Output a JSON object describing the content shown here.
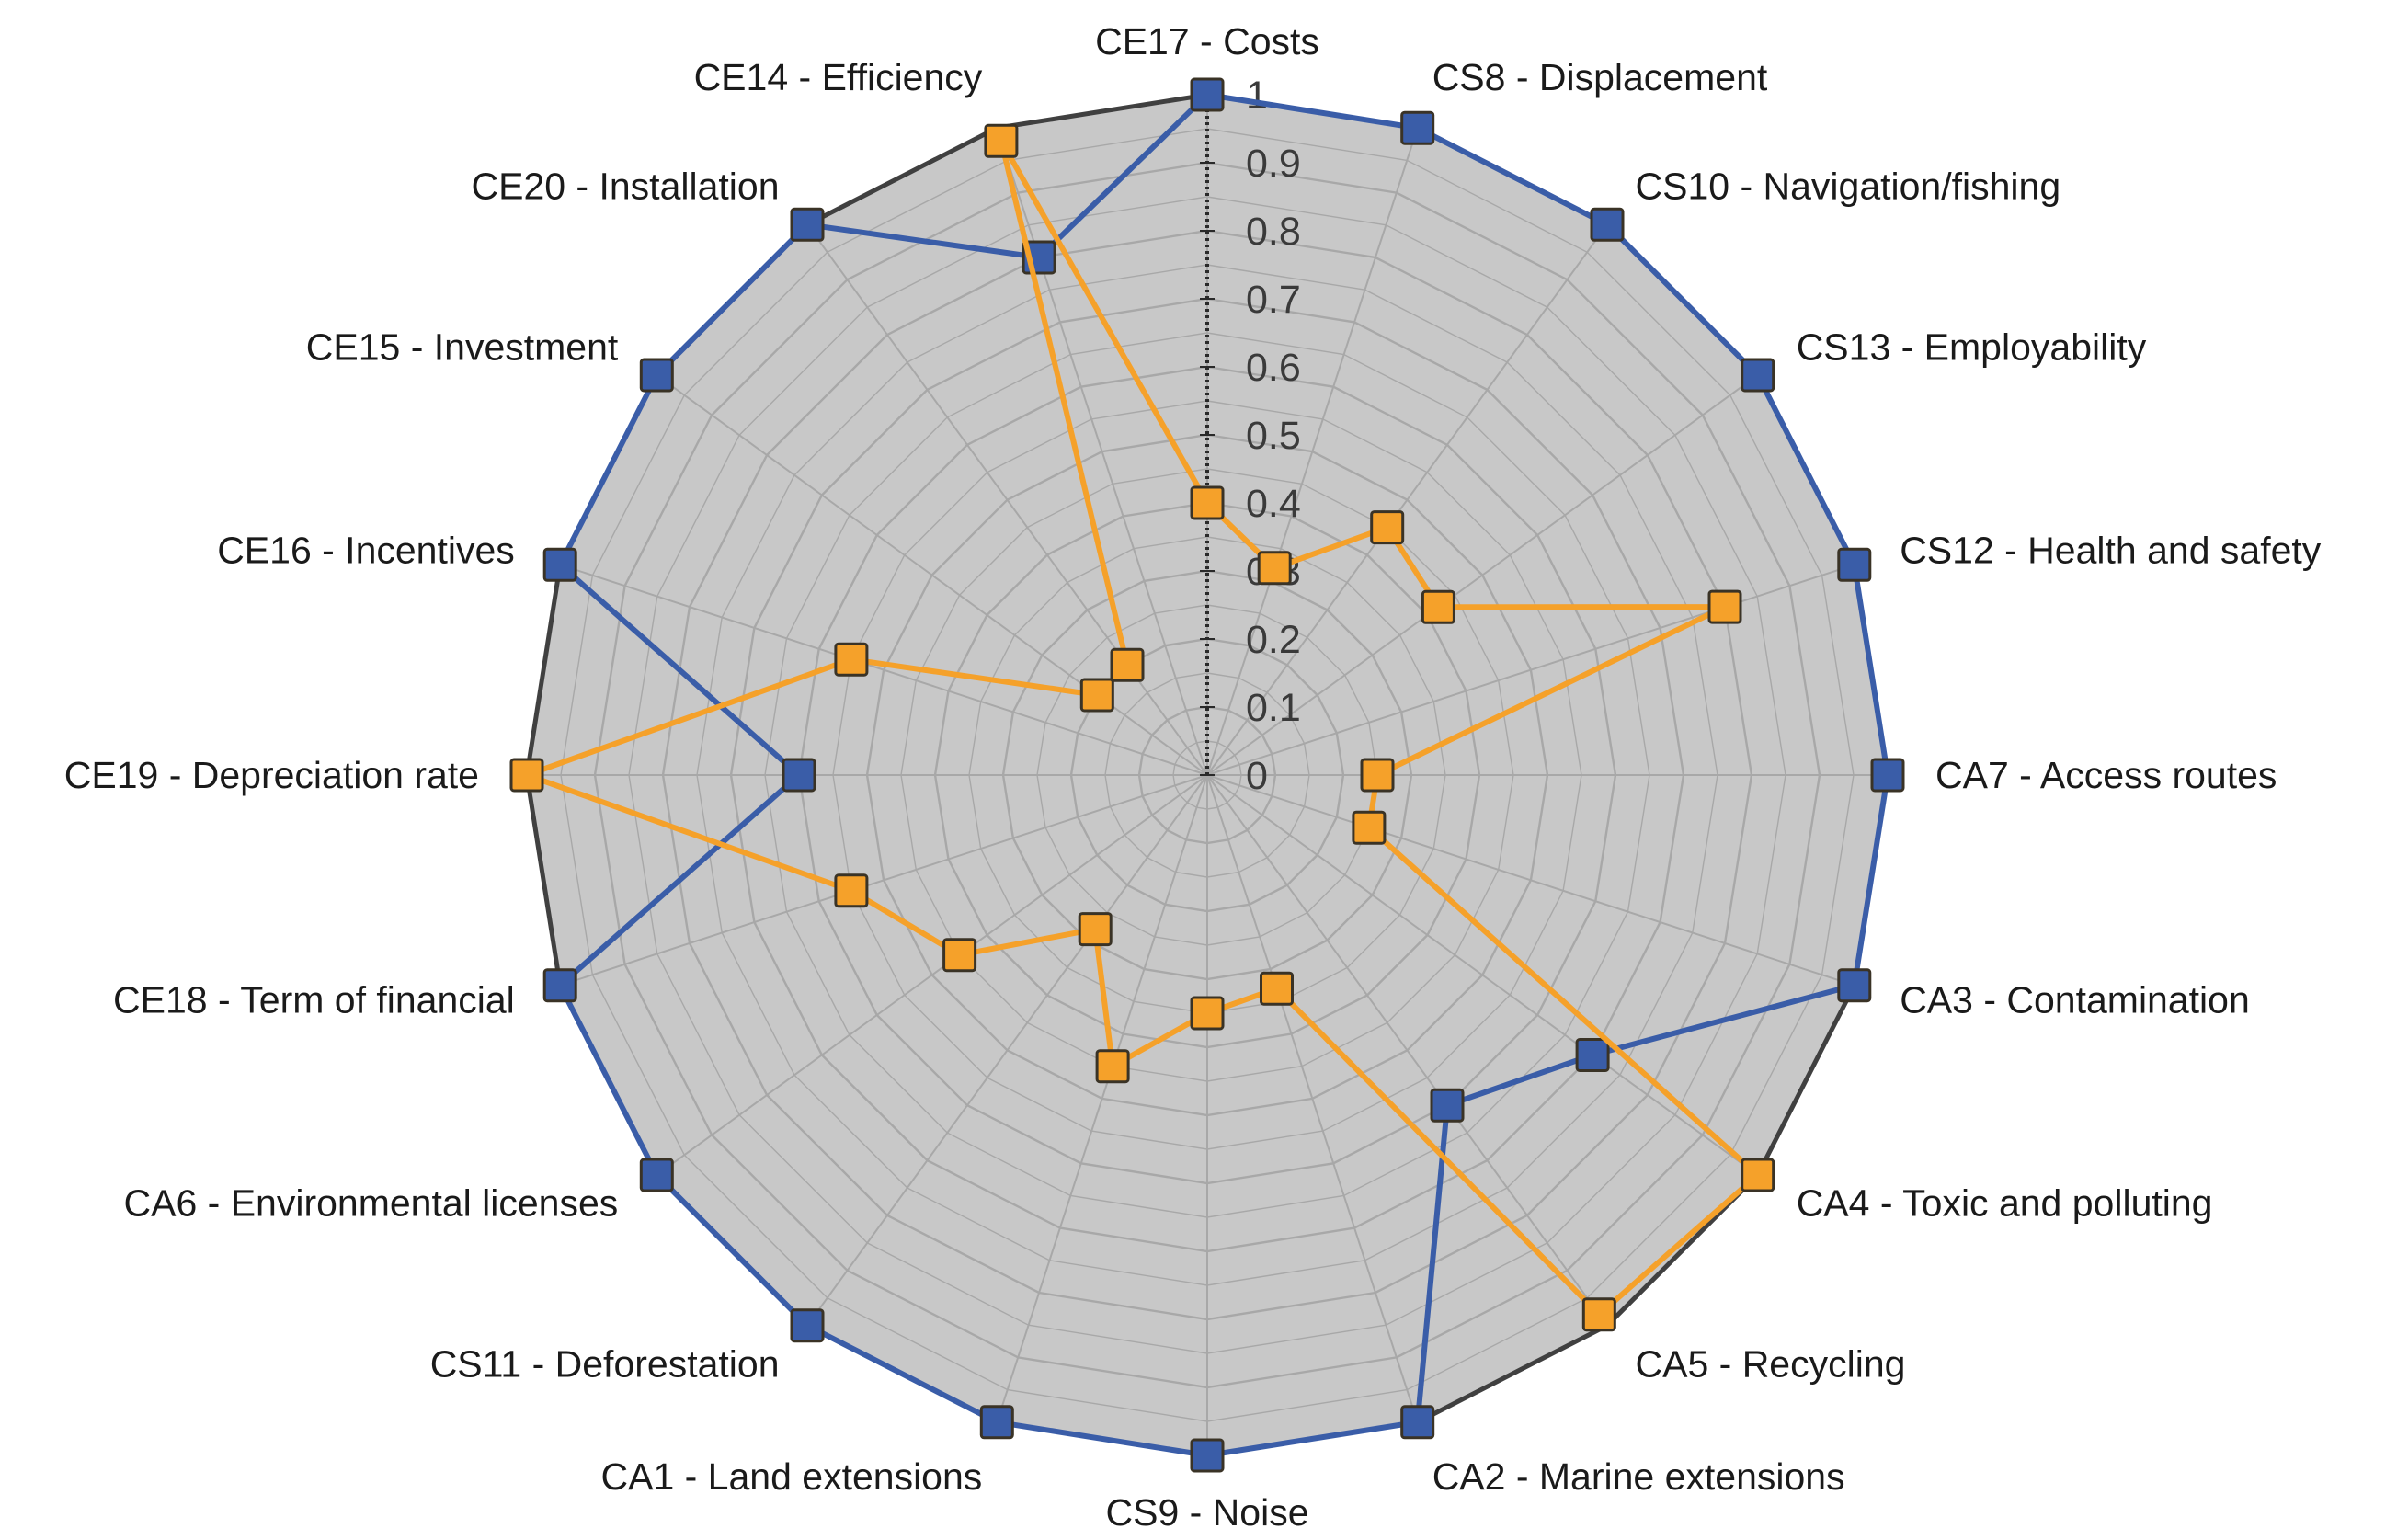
{
  "chart_data": {
    "type": "radar",
    "title": "",
    "categories": [
      "CE17 - Costs",
      "CS8 - Displacement",
      "CS10 - Navigation/fishing",
      "CS13 - Employability",
      "CS12 - Health and safety",
      "CA7 - Access routes",
      "CA3 - Contamination",
      "CA4 - Toxic and polluting",
      "CA5 - Recycling",
      "CA2 - Marine extensions",
      "CS9 - Noise",
      "CA1 - Land extensions",
      "CS11 - Deforestation",
      "CA6 - Environmental licenses",
      "CE18 - Term of financial",
      "CE19 - Depreciation rate",
      "CE16 - Incentives",
      "CE15 - Investment",
      "CE20 - Installation",
      "CE14 - Efficiency"
    ],
    "rlim": [
      0,
      1
    ],
    "ticks": [
      "0",
      "0.1",
      "0.2",
      "0.3",
      "0.4",
      "0.5",
      "0.6",
      "0.7",
      "0.8",
      "0.9",
      "1"
    ],
    "grid": true,
    "series": [
      {
        "color": "#3a5da8",
        "values": [
          1,
          1,
          1,
          1,
          1,
          1,
          1,
          0.7,
          0.6,
          1,
          1,
          1,
          1,
          1,
          1,
          0.6,
          1,
          1,
          1,
          0.8
        ]
      },
      {
        "color": "#f5a12a",
        "values": [
          0.4,
          0.32,
          0.45,
          0.42,
          0.8,
          0.25,
          0.25,
          1,
          0.98,
          0.33,
          0.35,
          0.45,
          0.28,
          0.45,
          0.55,
          1,
          0.55,
          0.2,
          0.2,
          0.98
        ]
      }
    ],
    "colors": {
      "plot_background": "#c8c8c8",
      "grid": "#a8a8a8",
      "outer_border": "#404040"
    }
  }
}
